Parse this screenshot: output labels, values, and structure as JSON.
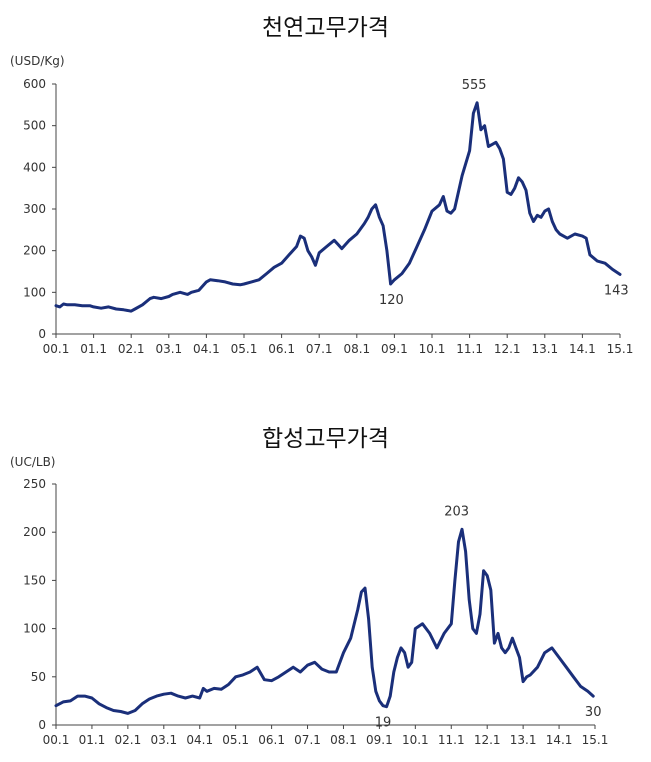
{
  "chart_data": [
    {
      "type": "line",
      "title": "천연고무가격",
      "ylabel": "(USD/Kg)",
      "ylim": [
        0,
        600
      ],
      "yticks": [
        0,
        100,
        200,
        300,
        400,
        500,
        600
      ],
      "xticks": [
        "00.1",
        "01.1",
        "02.1",
        "03.1",
        "04.1",
        "05.1",
        "06.1",
        "07.1",
        "08.1",
        "09.1",
        "10.1",
        "11.1",
        "12.1",
        "13.1",
        "14.1",
        "15.1"
      ],
      "xlim": [
        0,
        15
      ],
      "grid": false,
      "color": "#1a2f7a",
      "annotations": [
        {
          "text": "555",
          "x": 11.12,
          "y": 555
        },
        {
          "text": "120",
          "x": 8.92,
          "y": 120
        },
        {
          "text": "143",
          "x": 14.9,
          "y": 143
        }
      ],
      "series": [
        {
          "x": [
            0,
            0.1,
            0.2,
            0.3,
            0.5,
            0.7,
            0.9,
            1.0,
            1.2,
            1.4,
            1.6,
            1.8,
            2.0,
            2.1,
            2.3,
            2.5,
            2.6,
            2.8,
            3.0,
            3.1,
            3.3,
            3.5,
            3.6,
            3.8,
            4.0,
            4.1,
            4.3,
            4.5,
            4.7,
            4.9,
            5.0,
            5.2,
            5.4,
            5.6,
            5.8,
            6.0,
            6.2,
            6.4,
            6.5,
            6.6,
            6.7,
            6.8,
            6.9,
            7.0,
            7.2,
            7.4,
            7.5,
            7.6,
            7.8,
            8.0,
            8.2,
            8.3,
            8.4,
            8.5,
            8.6,
            8.7,
            8.8,
            8.9,
            9.0,
            9.2,
            9.4,
            9.6,
            9.8,
            10.0,
            10.2,
            10.3,
            10.4,
            10.5,
            10.6,
            10.8,
            11.0,
            11.1,
            11.2,
            11.3,
            11.4,
            11.5,
            11.6,
            11.7,
            11.8,
            11.9,
            12.0,
            12.1,
            12.2,
            12.3,
            12.4,
            12.5,
            12.6,
            12.7,
            12.8,
            12.9,
            13.0,
            13.1,
            13.2,
            13.3,
            13.4,
            13.6,
            13.8,
            14.0,
            14.1,
            14.2,
            14.4,
            14.6,
            14.8,
            15.0
          ],
          "y": [
            68,
            65,
            72,
            70,
            70,
            68,
            68,
            65,
            62,
            65,
            60,
            58,
            55,
            60,
            70,
            85,
            88,
            85,
            90,
            95,
            100,
            95,
            100,
            105,
            125,
            130,
            128,
            125,
            120,
            118,
            120,
            125,
            130,
            145,
            160,
            170,
            190,
            210,
            235,
            230,
            200,
            185,
            165,
            195,
            210,
            225,
            215,
            205,
            225,
            240,
            265,
            280,
            300,
            310,
            280,
            260,
            200,
            120,
            130,
            145,
            170,
            210,
            250,
            295,
            310,
            330,
            295,
            290,
            300,
            380,
            440,
            530,
            555,
            490,
            500,
            450,
            455,
            460,
            445,
            420,
            340,
            335,
            350,
            375,
            365,
            345,
            290,
            270,
            285,
            280,
            295,
            300,
            270,
            250,
            240,
            230,
            240,
            235,
            230,
            190,
            175,
            170,
            155,
            143
          ]
        }
      ]
    },
    {
      "type": "line",
      "title": "합성고무가격",
      "ylabel": "(UC/LB)",
      "ylim": [
        0,
        250
      ],
      "yticks": [
        0,
        50,
        100,
        150,
        200,
        250
      ],
      "xticks": [
        "00.1",
        "01.1",
        "02.1",
        "03.1",
        "04.1",
        "05.1",
        "06.1",
        "07.1",
        "08.1",
        "09.1",
        "10.1",
        "11.1",
        "12.1",
        "13.1",
        "14.1",
        "15.1"
      ],
      "xlim": [
        0,
        15
      ],
      "grid": false,
      "color": "#1a2f7a",
      "annotations": [
        {
          "text": "203",
          "x": 11.15,
          "y": 203
        },
        {
          "text": "19",
          "x": 9.1,
          "y": 19
        },
        {
          "text": "30",
          "x": 14.95,
          "y": 30
        }
      ],
      "series": [
        {
          "x": [
            0,
            0.2,
            0.4,
            0.6,
            0.8,
            1.0,
            1.2,
            1.4,
            1.6,
            1.8,
            2.0,
            2.2,
            2.4,
            2.6,
            2.8,
            3.0,
            3.2,
            3.4,
            3.6,
            3.8,
            4.0,
            4.1,
            4.2,
            4.4,
            4.6,
            4.8,
            5.0,
            5.2,
            5.4,
            5.6,
            5.8,
            6.0,
            6.2,
            6.4,
            6.6,
            6.8,
            7.0,
            7.2,
            7.4,
            7.6,
            7.8,
            8.0,
            8.2,
            8.4,
            8.5,
            8.6,
            8.7,
            8.8,
            8.9,
            9.0,
            9.1,
            9.2,
            9.3,
            9.4,
            9.5,
            9.6,
            9.7,
            9.8,
            9.9,
            10.0,
            10.2,
            10.4,
            10.6,
            10.8,
            11.0,
            11.1,
            11.2,
            11.3,
            11.4,
            11.5,
            11.6,
            11.7,
            11.8,
            11.9,
            12.0,
            12.1,
            12.2,
            12.3,
            12.4,
            12.5,
            12.6,
            12.7,
            12.8,
            12.9,
            13.0,
            13.1,
            13.2,
            13.4,
            13.6,
            13.8,
            14.0,
            14.2,
            14.4,
            14.6,
            14.8,
            14.95
          ],
          "y": [
            20,
            24,
            25,
            30,
            30,
            28,
            22,
            18,
            15,
            14,
            12,
            15,
            22,
            27,
            30,
            32,
            33,
            30,
            28,
            30,
            28,
            38,
            35,
            38,
            37,
            42,
            50,
            52,
            55,
            60,
            47,
            46,
            50,
            55,
            60,
            55,
            62,
            65,
            58,
            55,
            55,
            75,
            90,
            120,
            138,
            142,
            110,
            60,
            35,
            25,
            20,
            19,
            30,
            55,
            70,
            80,
            75,
            60,
            65,
            100,
            105,
            95,
            80,
            95,
            105,
            150,
            190,
            203,
            180,
            130,
            100,
            95,
            115,
            160,
            155,
            140,
            85,
            95,
            80,
            75,
            80,
            90,
            80,
            70,
            45,
            50,
            52,
            60,
            75,
            80,
            70,
            60,
            50,
            40,
            35,
            30
          ]
        }
      ]
    }
  ]
}
